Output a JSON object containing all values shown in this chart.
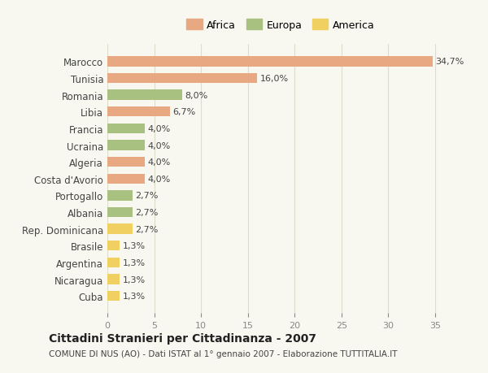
{
  "categories": [
    "Marocco",
    "Tunisia",
    "Romania",
    "Libia",
    "Francia",
    "Ucraina",
    "Algeria",
    "Costa d'Avorio",
    "Portogallo",
    "Albania",
    "Rep. Dominicana",
    "Brasile",
    "Argentina",
    "Nicaragua",
    "Cuba"
  ],
  "values": [
    34.7,
    16.0,
    8.0,
    6.7,
    4.0,
    4.0,
    4.0,
    4.0,
    2.7,
    2.7,
    2.7,
    1.3,
    1.3,
    1.3,
    1.3
  ],
  "labels": [
    "34,7%",
    "16,0%",
    "8,0%",
    "6,7%",
    "4,0%",
    "4,0%",
    "4,0%",
    "4,0%",
    "2,7%",
    "2,7%",
    "2,7%",
    "1,3%",
    "1,3%",
    "1,3%",
    "1,3%"
  ],
  "colors": [
    "#E8A882",
    "#E8A882",
    "#A8C080",
    "#E8A882",
    "#A8C080",
    "#A8C080",
    "#E8A882",
    "#E8A882",
    "#A8C080",
    "#A8C080",
    "#F0D060",
    "#F0D060",
    "#F0D060",
    "#F0D060",
    "#F0D060"
  ],
  "continent": [
    "Africa",
    "Africa",
    "Europa",
    "Africa",
    "Europa",
    "Europa",
    "Africa",
    "Africa",
    "Europa",
    "Europa",
    "America",
    "America",
    "America",
    "America",
    "America"
  ],
  "legend_labels": [
    "Africa",
    "Europa",
    "America"
  ],
  "legend_colors": [
    "#E8A882",
    "#A8C080",
    "#F0D060"
  ],
  "xlim": [
    0,
    37
  ],
  "xticks": [
    0,
    5,
    10,
    15,
    20,
    25,
    30,
    35
  ],
  "title": "Cittadini Stranieri per Cittadinanza - 2007",
  "subtitle": "COMUNE DI NUS (AO) - Dati ISTAT al 1° gennaio 2007 - Elaborazione TUTTITALIA.IT",
  "background_color": "#F8F8F0",
  "grid_color": "#DDDDCC",
  "bar_height": 0.6
}
